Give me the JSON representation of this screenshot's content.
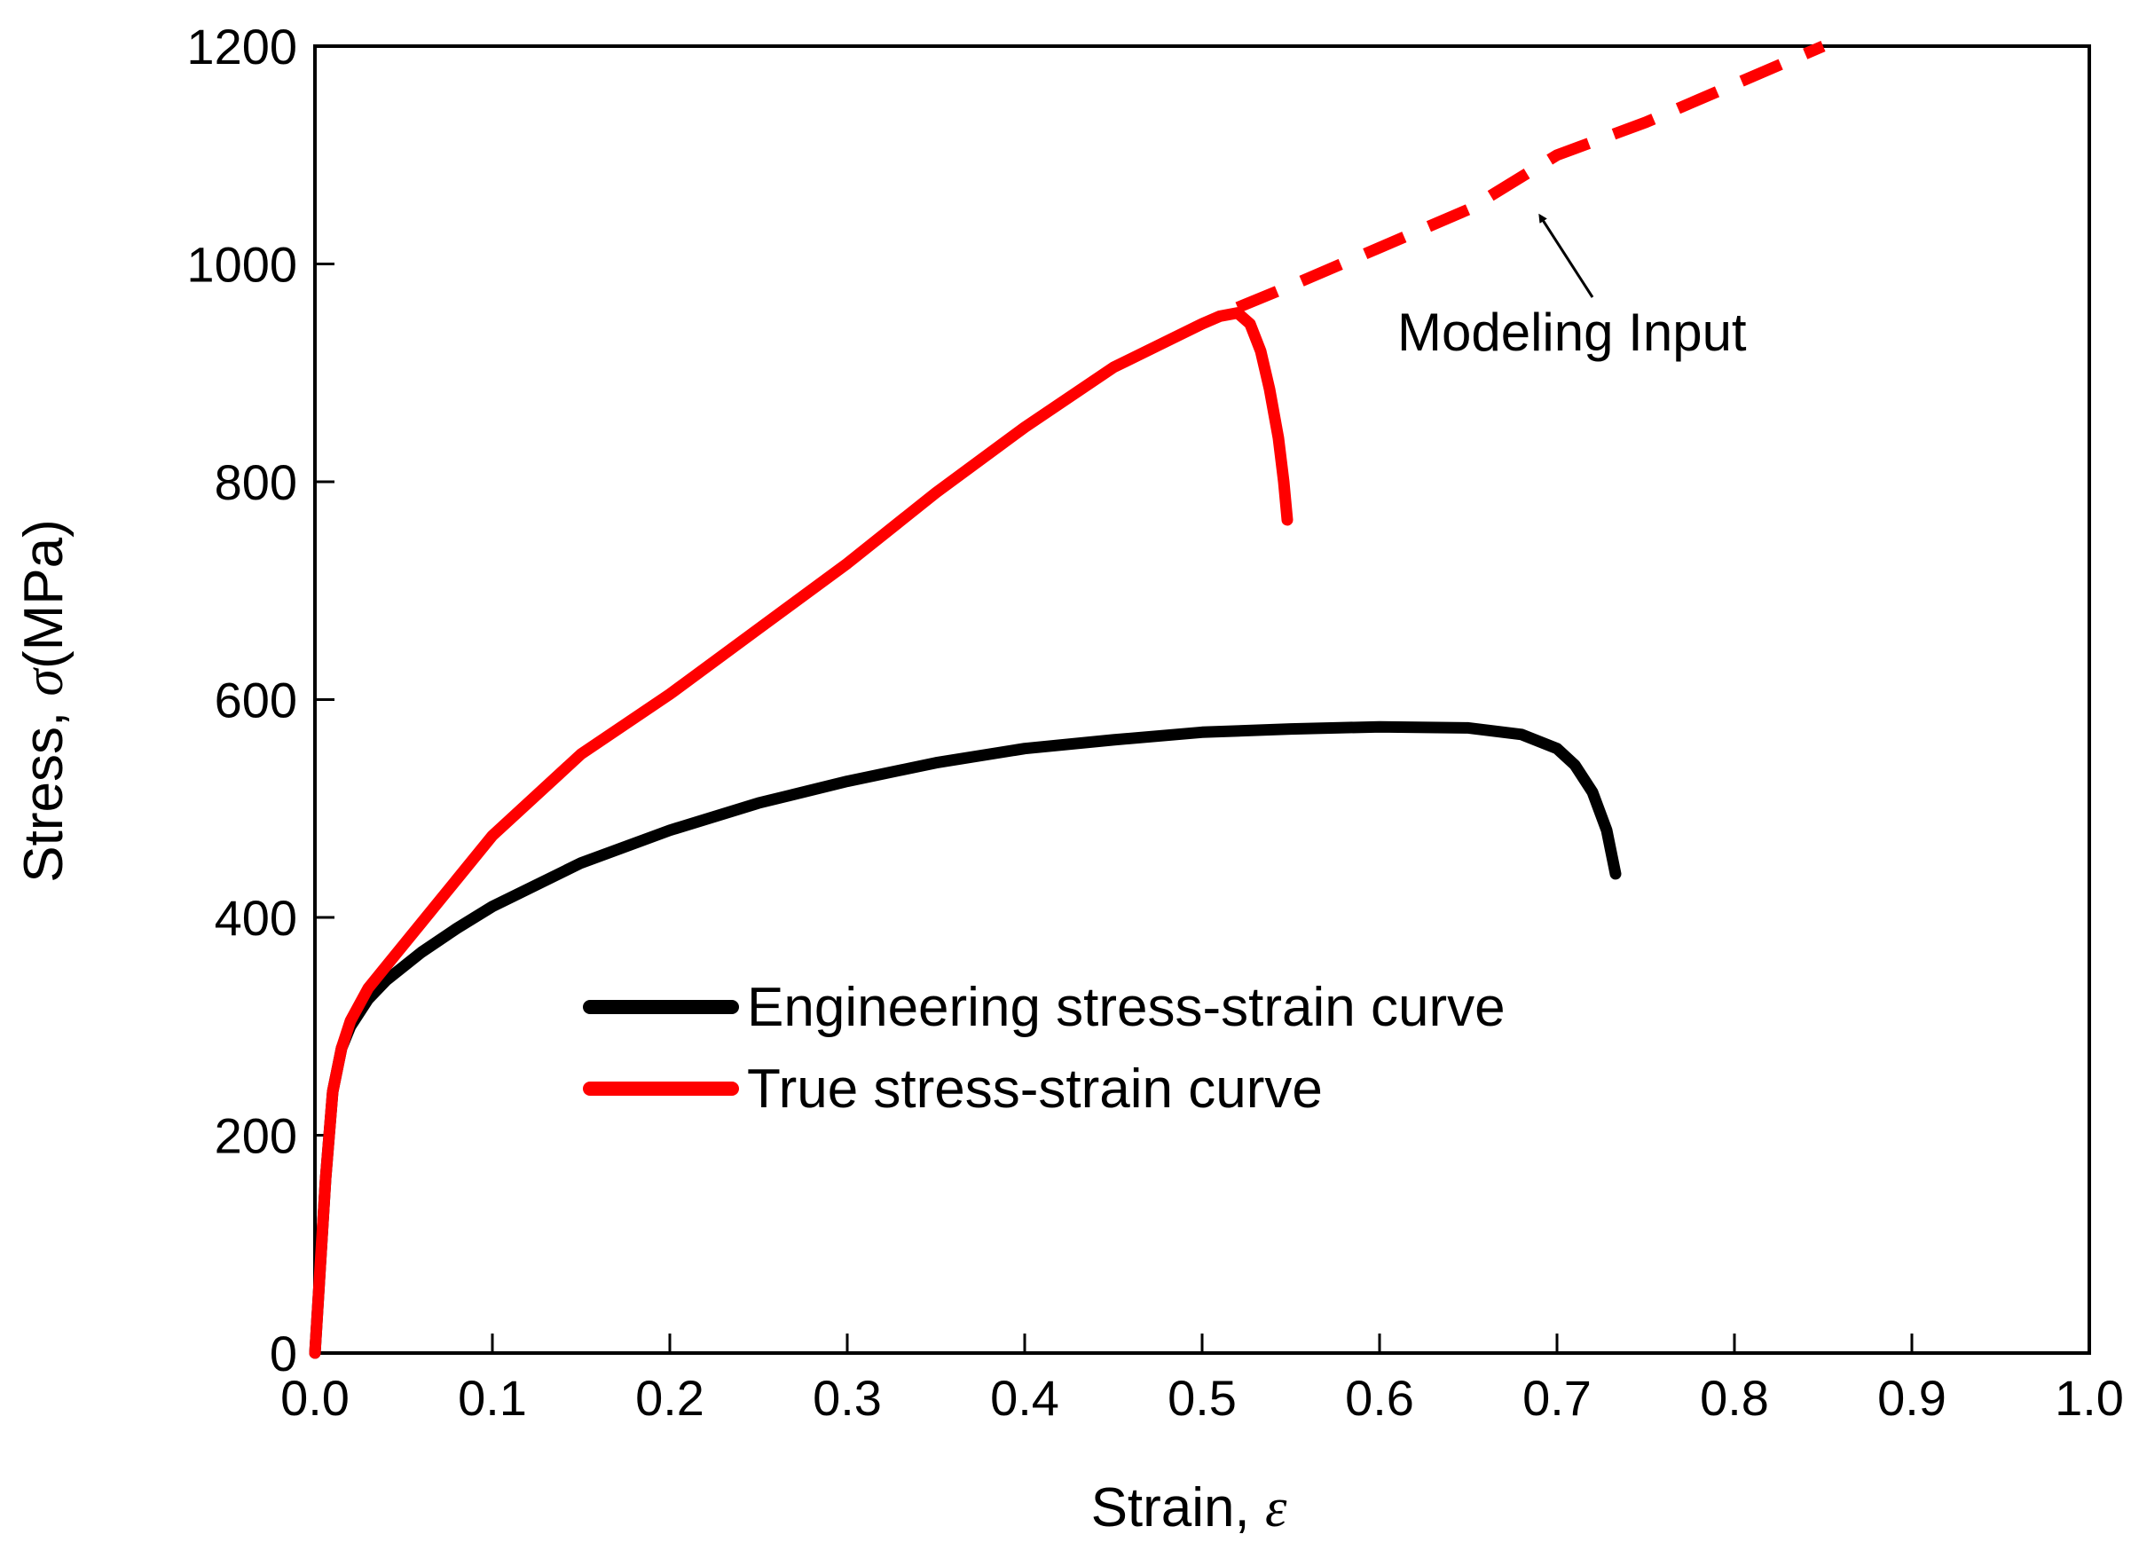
{
  "chart_data": {
    "type": "line",
    "title": "",
    "xlabel": "Strain, ",
    "xlabel_symbol": "ε",
    "ylabel": "Stress, ",
    "ylabel_symbol": "σ",
    "ylabel_unit": "(MPa)",
    "xlim": [
      0.0,
      1.0
    ],
    "ylim": [
      0,
      1200
    ],
    "xticks": [
      "0.0",
      "0.1",
      "0.2",
      "0.3",
      "0.4",
      "0.5",
      "0.6",
      "0.7",
      "0.8",
      "0.9",
      "1.0"
    ],
    "yticks": [
      "0",
      "200",
      "400",
      "600",
      "800",
      "1000",
      "1200"
    ],
    "legend_position": "center",
    "series": [
      {
        "name": "Engineering stress-strain curve",
        "color": "#000000",
        "style": "solid",
        "x": [
          0,
          0.003,
          0.006,
          0.01,
          0.015,
          0.02,
          0.03,
          0.04,
          0.06,
          0.08,
          0.1,
          0.15,
          0.2,
          0.25,
          0.3,
          0.35,
          0.4,
          0.45,
          0.5,
          0.55,
          0.6,
          0.65,
          0.68,
          0.7,
          0.71,
          0.72,
          0.728,
          0.733
        ],
        "y": [
          0,
          80,
          160,
          240,
          280,
          300,
          325,
          342,
          368,
          390,
          410,
          450,
          480,
          505,
          525,
          542,
          555,
          563,
          570,
          573,
          575,
          574,
          568,
          555,
          540,
          515,
          480,
          440
        ]
      },
      {
        "name": "True stress-strain curve",
        "color": "#ff0000",
        "style": "solid",
        "x": [
          0,
          0.003,
          0.006,
          0.01,
          0.015,
          0.02,
          0.03,
          0.04,
          0.06,
          0.08,
          0.1,
          0.15,
          0.2,
          0.25,
          0.3,
          0.35,
          0.4,
          0.45,
          0.5,
          0.51,
          0.52,
          0.527,
          0.533,
          0.538,
          0.543,
          0.546,
          0.548
        ],
        "y": [
          0,
          80,
          160,
          240,
          280,
          305,
          335,
          355,
          395,
          435,
          475,
          550,
          605,
          665,
          725,
          790,
          850,
          905,
          945,
          952,
          955,
          945,
          920,
          885,
          840,
          800,
          765
        ]
      },
      {
        "name": "Modeling Input",
        "color": "#ff0000",
        "style": "dashed",
        "x": [
          0.52,
          0.55,
          0.6,
          0.65,
          0.7,
          0.75,
          0.8,
          0.85
        ],
        "y": [
          960,
          980,
          1015,
          1050,
          1100,
          1130,
          1165,
          1200
        ]
      }
    ],
    "annotations": [
      {
        "text": "Modeling Input",
        "points_to": "dashed extrapolation",
        "arrow_target": {
          "x": 0.69,
          "y": 1050
        }
      }
    ]
  }
}
